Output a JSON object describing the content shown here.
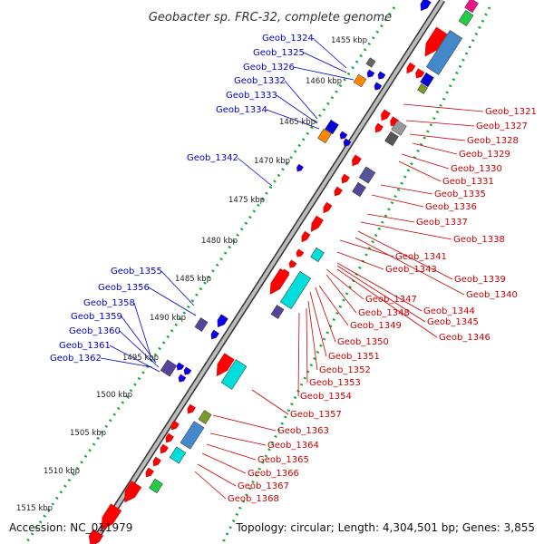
{
  "title": "Geobacter sp. FRC-32, complete genome",
  "footer": {
    "accession": "Accession: NC_011979",
    "summary": "Topology: circular; Length: 4,304,501 bp; Genes: 3,855"
  },
  "colors": {
    "forward_labels": "#0000cc",
    "reverse_labels": "#cc0000",
    "backbone": "#888888",
    "dotted_guides": "#11aa33"
  },
  "scale_labels": [
    "1455 kbp",
    "1460 kbp",
    "1465 kbp",
    "1470 kbp",
    "1475 kbp",
    "1480 kbp",
    "1485 kbp",
    "1490 kbp",
    "1495 kbp",
    "1500 kbp",
    "1505 kbp",
    "1510 kbp",
    "1515 kbp"
  ],
  "genes_left": [
    "Geob_1324",
    "Geob_1325",
    "Geob_1326",
    "Geob_1332",
    "Geob_1333",
    "Geob_1334",
    "Geob_1342",
    "Geob_1355",
    "Geob_1356",
    "Geob_1358",
    "Geob_1359",
    "Geob_1360",
    "Geob_1361",
    "Geob_1362"
  ],
  "genes_right": [
    "Geob_1321",
    "Geob_1327",
    "Geob_1328",
    "Geob_1329",
    "Geob_1330",
    "Geob_1331",
    "Geob_1335",
    "Geob_1336",
    "Geob_1337",
    "Geob_1338",
    "Geob_1339",
    "Geob_1340",
    "Geob_1341",
    "Geob_1343",
    "Geob_1344",
    "Geob_1345",
    "Geob_1346",
    "Geob_1347",
    "Geob_1348",
    "Geob_1349",
    "Geob_1350",
    "Geob_1351",
    "Geob_1352",
    "Geob_1353",
    "Geob_1354",
    "Geob_1357",
    "Geob_1363",
    "Geob_1364",
    "Geob_1365",
    "Geob_1366",
    "Geob_1367",
    "Geob_1368"
  ]
}
